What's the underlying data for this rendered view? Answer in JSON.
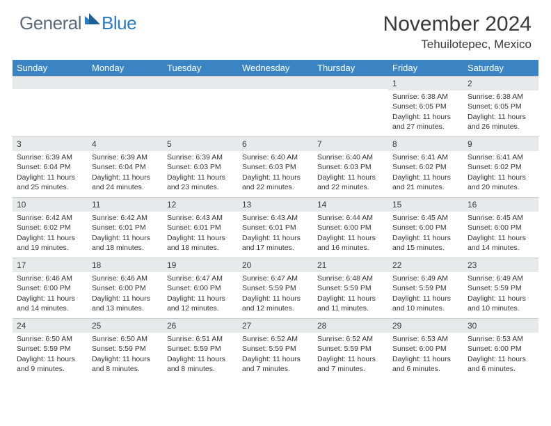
{
  "logo": {
    "text1": "General",
    "text2": "Blue"
  },
  "title": "November 2024",
  "location": "Tehuilotepec, Mexico",
  "colors": {
    "header_bg": "#3b84c4",
    "band_bg": "#e8e9ea",
    "text": "#333333",
    "logo_gray": "#5a6a78",
    "logo_blue": "#2a7bbf",
    "border": "#c9cbce"
  },
  "weekdays": [
    "Sunday",
    "Monday",
    "Tuesday",
    "Wednesday",
    "Thursday",
    "Friday",
    "Saturday"
  ],
  "weeks": [
    [
      {
        "n": "",
        "sr": "",
        "ss": "",
        "dl": ""
      },
      {
        "n": "",
        "sr": "",
        "ss": "",
        "dl": ""
      },
      {
        "n": "",
        "sr": "",
        "ss": "",
        "dl": ""
      },
      {
        "n": "",
        "sr": "",
        "ss": "",
        "dl": ""
      },
      {
        "n": "",
        "sr": "",
        "ss": "",
        "dl": ""
      },
      {
        "n": "1",
        "sr": "Sunrise: 6:38 AM",
        "ss": "Sunset: 6:05 PM",
        "dl": "Daylight: 11 hours and 27 minutes."
      },
      {
        "n": "2",
        "sr": "Sunrise: 6:38 AM",
        "ss": "Sunset: 6:05 PM",
        "dl": "Daylight: 11 hours and 26 minutes."
      }
    ],
    [
      {
        "n": "3",
        "sr": "Sunrise: 6:39 AM",
        "ss": "Sunset: 6:04 PM",
        "dl": "Daylight: 11 hours and 25 minutes."
      },
      {
        "n": "4",
        "sr": "Sunrise: 6:39 AM",
        "ss": "Sunset: 6:04 PM",
        "dl": "Daylight: 11 hours and 24 minutes."
      },
      {
        "n": "5",
        "sr": "Sunrise: 6:39 AM",
        "ss": "Sunset: 6:03 PM",
        "dl": "Daylight: 11 hours and 23 minutes."
      },
      {
        "n": "6",
        "sr": "Sunrise: 6:40 AM",
        "ss": "Sunset: 6:03 PM",
        "dl": "Daylight: 11 hours and 22 minutes."
      },
      {
        "n": "7",
        "sr": "Sunrise: 6:40 AM",
        "ss": "Sunset: 6:03 PM",
        "dl": "Daylight: 11 hours and 22 minutes."
      },
      {
        "n": "8",
        "sr": "Sunrise: 6:41 AM",
        "ss": "Sunset: 6:02 PM",
        "dl": "Daylight: 11 hours and 21 minutes."
      },
      {
        "n": "9",
        "sr": "Sunrise: 6:41 AM",
        "ss": "Sunset: 6:02 PM",
        "dl": "Daylight: 11 hours and 20 minutes."
      }
    ],
    [
      {
        "n": "10",
        "sr": "Sunrise: 6:42 AM",
        "ss": "Sunset: 6:02 PM",
        "dl": "Daylight: 11 hours and 19 minutes."
      },
      {
        "n": "11",
        "sr": "Sunrise: 6:42 AM",
        "ss": "Sunset: 6:01 PM",
        "dl": "Daylight: 11 hours and 18 minutes."
      },
      {
        "n": "12",
        "sr": "Sunrise: 6:43 AM",
        "ss": "Sunset: 6:01 PM",
        "dl": "Daylight: 11 hours and 18 minutes."
      },
      {
        "n": "13",
        "sr": "Sunrise: 6:43 AM",
        "ss": "Sunset: 6:01 PM",
        "dl": "Daylight: 11 hours and 17 minutes."
      },
      {
        "n": "14",
        "sr": "Sunrise: 6:44 AM",
        "ss": "Sunset: 6:00 PM",
        "dl": "Daylight: 11 hours and 16 minutes."
      },
      {
        "n": "15",
        "sr": "Sunrise: 6:45 AM",
        "ss": "Sunset: 6:00 PM",
        "dl": "Daylight: 11 hours and 15 minutes."
      },
      {
        "n": "16",
        "sr": "Sunrise: 6:45 AM",
        "ss": "Sunset: 6:00 PM",
        "dl": "Daylight: 11 hours and 14 minutes."
      }
    ],
    [
      {
        "n": "17",
        "sr": "Sunrise: 6:46 AM",
        "ss": "Sunset: 6:00 PM",
        "dl": "Daylight: 11 hours and 14 minutes."
      },
      {
        "n": "18",
        "sr": "Sunrise: 6:46 AM",
        "ss": "Sunset: 6:00 PM",
        "dl": "Daylight: 11 hours and 13 minutes."
      },
      {
        "n": "19",
        "sr": "Sunrise: 6:47 AM",
        "ss": "Sunset: 6:00 PM",
        "dl": "Daylight: 11 hours and 12 minutes."
      },
      {
        "n": "20",
        "sr": "Sunrise: 6:47 AM",
        "ss": "Sunset: 5:59 PM",
        "dl": "Daylight: 11 hours and 12 minutes."
      },
      {
        "n": "21",
        "sr": "Sunrise: 6:48 AM",
        "ss": "Sunset: 5:59 PM",
        "dl": "Daylight: 11 hours and 11 minutes."
      },
      {
        "n": "22",
        "sr": "Sunrise: 6:49 AM",
        "ss": "Sunset: 5:59 PM",
        "dl": "Daylight: 11 hours and 10 minutes."
      },
      {
        "n": "23",
        "sr": "Sunrise: 6:49 AM",
        "ss": "Sunset: 5:59 PM",
        "dl": "Daylight: 11 hours and 10 minutes."
      }
    ],
    [
      {
        "n": "24",
        "sr": "Sunrise: 6:50 AM",
        "ss": "Sunset: 5:59 PM",
        "dl": "Daylight: 11 hours and 9 minutes."
      },
      {
        "n": "25",
        "sr": "Sunrise: 6:50 AM",
        "ss": "Sunset: 5:59 PM",
        "dl": "Daylight: 11 hours and 8 minutes."
      },
      {
        "n": "26",
        "sr": "Sunrise: 6:51 AM",
        "ss": "Sunset: 5:59 PM",
        "dl": "Daylight: 11 hours and 8 minutes."
      },
      {
        "n": "27",
        "sr": "Sunrise: 6:52 AM",
        "ss": "Sunset: 5:59 PM",
        "dl": "Daylight: 11 hours and 7 minutes."
      },
      {
        "n": "28",
        "sr": "Sunrise: 6:52 AM",
        "ss": "Sunset: 5:59 PM",
        "dl": "Daylight: 11 hours and 7 minutes."
      },
      {
        "n": "29",
        "sr": "Sunrise: 6:53 AM",
        "ss": "Sunset: 6:00 PM",
        "dl": "Daylight: 11 hours and 6 minutes."
      },
      {
        "n": "30",
        "sr": "Sunrise: 6:53 AM",
        "ss": "Sunset: 6:00 PM",
        "dl": "Daylight: 11 hours and 6 minutes."
      }
    ]
  ]
}
